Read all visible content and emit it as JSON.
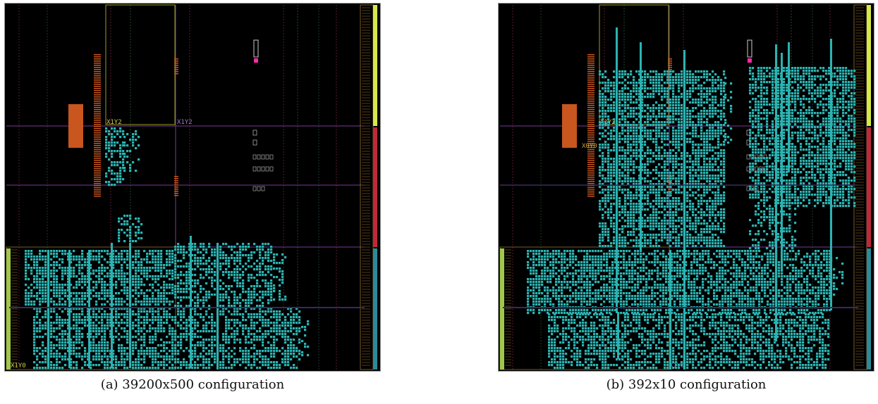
{
  "figures": [
    {
      "id": "a",
      "caption": "(a) 39200x500 configuration",
      "region_labels": [
        "X1Y2",
        "X1Y2",
        "X1Y0"
      ]
    },
    {
      "id": "b",
      "caption": "(b) 392x10 configuration",
      "region_labels": [
        "X1Y2",
        "X0Y0",
        "X1Y0"
      ]
    }
  ],
  "colors": {
    "background": "#000000",
    "placed_cells": "#2bb3b1",
    "io_block": "#c8561e",
    "clock_region_border_purple": "#7a3a9a",
    "pblock_border_yellow": "#9a9a2a",
    "io_bank_yellow": "#d8e84a",
    "io_bank_red": "#c0283c",
    "io_bank_teal": "#2a8a9a",
    "marker_magenta": "#ff2aa8"
  }
}
